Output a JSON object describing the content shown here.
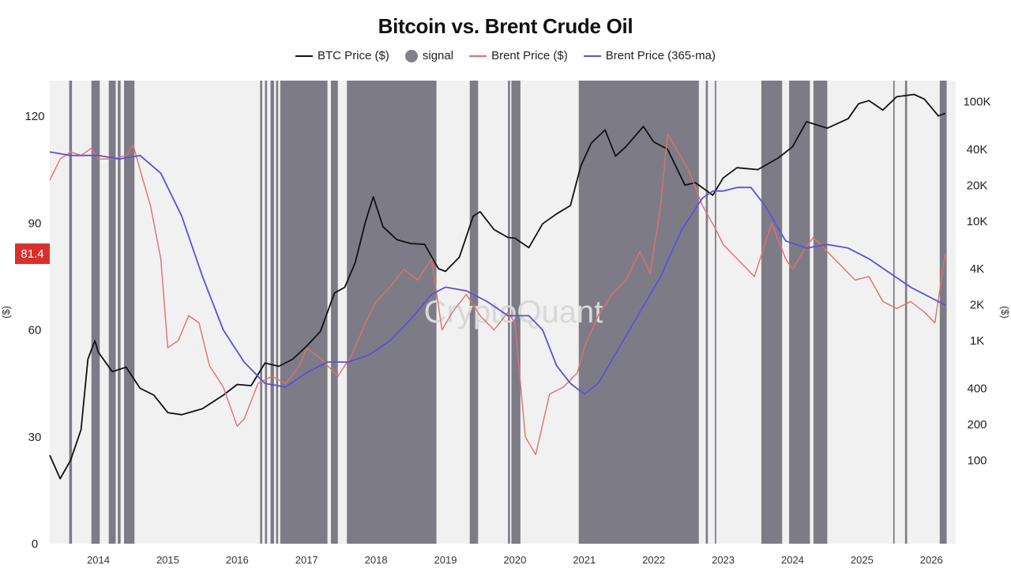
{
  "chart_data": {
    "type": "line",
    "title": "Bitcoin vs. Brent Crude Oil",
    "watermark": "CryptoQuant",
    "legend": [
      {
        "label": "BTC Price ($)",
        "color": "#111111",
        "kind": "line"
      },
      {
        "label": "signal",
        "color": "#808088",
        "kind": "dot"
      },
      {
        "label": "Brent Price ($)",
        "color": "#e07070",
        "kind": "line"
      },
      {
        "label": "Brent Price (365-ma)",
        "color": "#5a50d8",
        "kind": "line"
      }
    ],
    "left_axis": {
      "label": "($)",
      "ticks": [
        "0",
        "30",
        "60",
        "90",
        "120"
      ],
      "values": [
        0,
        30,
        60,
        90,
        120
      ],
      "range": [
        0,
        130
      ]
    },
    "right_axis": {
      "label": "($)",
      "scale": "log",
      "ticks": [
        "100K",
        "40K",
        "20K",
        "10K",
        "4K",
        "2K",
        "1K",
        "400",
        "200",
        "100"
      ],
      "values": [
        100000,
        40000,
        20000,
        10000,
        4000,
        2000,
        1000,
        400,
        200,
        100
      ],
      "range": [
        20,
        150000
      ]
    },
    "x_axis": {
      "ticks": [
        "2014",
        "2015",
        "2016",
        "2017",
        "2018",
        "2019",
        "2020",
        "2021",
        "2022",
        "2023",
        "2024",
        "2025",
        "2026"
      ],
      "values": [
        2014,
        2015,
        2016,
        2017,
        2018,
        2019,
        2020,
        2021,
        2022,
        2023,
        2024,
        2025,
        2026
      ],
      "range": [
        2013.3,
        2026.35
      ]
    },
    "current_value_label": "81.4",
    "current_value": 81.4,
    "series": [
      {
        "name": "BTC Price ($)",
        "axis": "right",
        "x": [
          2013.3,
          2013.45,
          2013.6,
          2013.75,
          2013.85,
          2013.95,
          2014.0,
          2014.2,
          2014.4,
          2014.6,
          2014.8,
          2015.0,
          2015.2,
          2015.5,
          2015.8,
          2016.0,
          2016.2,
          2016.4,
          2016.6,
          2016.8,
          2017.0,
          2017.2,
          2017.4,
          2017.55,
          2017.7,
          2017.85,
          2017.96,
          2018.1,
          2018.3,
          2018.5,
          2018.7,
          2018.9,
          2019.0,
          2019.2,
          2019.4,
          2019.5,
          2019.7,
          2019.9,
          2020.0,
          2020.2,
          2020.4,
          2020.6,
          2020.8,
          2020.95,
          2021.1,
          2021.3,
          2021.45,
          2021.6,
          2021.85,
          2022.0,
          2022.2,
          2022.45,
          2022.6,
          2022.85,
          2023.0,
          2023.2,
          2023.5,
          2023.8,
          2024.0,
          2024.2,
          2024.5,
          2024.8,
          2024.95,
          2025.1,
          2025.3,
          2025.5,
          2025.75,
          2025.9,
          2026.1,
          2026.2
        ],
        "values": [
          110,
          70,
          100,
          180,
          700,
          1000,
          800,
          550,
          600,
          400,
          350,
          250,
          240,
          270,
          350,
          430,
          420,
          650,
          610,
          700,
          900,
          1200,
          2500,
          2800,
          4500,
          10000,
          16000,
          9000,
          7000,
          6500,
          6400,
          4000,
          3800,
          5000,
          11000,
          12000,
          8500,
          7300,
          7200,
          6000,
          9500,
          11500,
          13500,
          29000,
          45000,
          58000,
          35000,
          42000,
          62000,
          46000,
          40000,
          20000,
          21000,
          16500,
          23000,
          28000,
          27000,
          34000,
          42000,
          68000,
          60000,
          72000,
          96000,
          102000,
          85000,
          110000,
          115000,
          105000,
          76000,
          80000
        ]
      },
      {
        "name": "Brent Price ($)",
        "axis": "left",
        "x": [
          2013.3,
          2013.45,
          2013.6,
          2013.75,
          2013.9,
          2014.0,
          2014.2,
          2014.4,
          2014.5,
          2014.6,
          2014.75,
          2014.9,
          2015.0,
          2015.15,
          2015.3,
          2015.45,
          2015.6,
          2015.8,
          2016.0,
          2016.1,
          2016.3,
          2016.5,
          2016.7,
          2016.9,
          2017.0,
          2017.2,
          2017.45,
          2017.65,
          2017.85,
          2018.0,
          2018.2,
          2018.4,
          2018.6,
          2018.8,
          2018.95,
          2019.1,
          2019.3,
          2019.5,
          2019.7,
          2019.9,
          2020.0,
          2020.15,
          2020.3,
          2020.5,
          2020.7,
          2020.9,
          2021.0,
          2021.2,
          2021.4,
          2021.6,
          2021.8,
          2021.95,
          2022.1,
          2022.2,
          2022.35,
          2022.5,
          2022.7,
          2022.9,
          2023.0,
          2023.2,
          2023.45,
          2023.7,
          2023.9,
          2024.0,
          2024.15,
          2024.3,
          2024.5,
          2024.7,
          2024.9,
          2025.1,
          2025.3,
          2025.5,
          2025.7,
          2025.9,
          2026.05,
          2026.2
        ],
        "values": [
          102,
          108,
          110,
          109,
          111,
          108,
          108,
          109,
          112,
          105,
          95,
          80,
          55,
          57,
          64,
          62,
          50,
          44,
          33,
          35,
          45,
          47,
          45,
          50,
          55,
          52,
          47,
          53,
          62,
          68,
          72,
          77,
          74,
          80,
          60,
          65,
          70,
          64,
          60,
          65,
          62,
          30,
          25,
          42,
          44,
          48,
          55,
          64,
          70,
          74,
          82,
          76,
          95,
          115,
          110,
          105,
          95,
          88,
          84,
          80,
          75,
          90,
          80,
          77,
          82,
          86,
          82,
          78,
          74,
          75,
          68,
          66,
          68,
          65,
          62,
          81.4
        ]
      },
      {
        "name": "Brent Price (365-ma)",
        "axis": "left",
        "x": [
          2013.3,
          2013.6,
          2014.0,
          2014.3,
          2014.6,
          2014.9,
          2015.2,
          2015.5,
          2015.8,
          2016.1,
          2016.4,
          2016.7,
          2017.0,
          2017.3,
          2017.6,
          2017.9,
          2018.2,
          2018.5,
          2018.8,
          2019.0,
          2019.3,
          2019.6,
          2019.9,
          2020.0,
          2020.2,
          2020.4,
          2020.6,
          2020.8,
          2021.0,
          2021.2,
          2021.5,
          2021.8,
          2022.1,
          2022.4,
          2022.7,
          2022.85,
          2023.0,
          2023.2,
          2023.4,
          2023.6,
          2023.9,
          2024.2,
          2024.5,
          2024.8,
          2025.1,
          2025.4,
          2025.7,
          2026.0,
          2026.2
        ],
        "values": [
          110,
          109,
          109,
          108,
          109,
          104,
          92,
          75,
          60,
          51,
          45,
          44,
          48,
          51,
          51,
          53,
          57,
          63,
          70,
          72,
          71,
          68,
          64,
          64,
          64,
          60,
          50,
          45,
          42,
          45,
          55,
          65,
          75,
          88,
          97,
          99,
          99,
          100,
          100,
          95,
          85,
          83,
          84,
          83,
          80,
          76,
          72,
          69,
          67
        ]
      }
    ],
    "signal_periods": [
      [
        2013.58,
        2013.62
      ],
      [
        2013.9,
        2014.02
      ],
      [
        2014.15,
        2014.25
      ],
      [
        2014.28,
        2014.32
      ],
      [
        2014.37,
        2014.52
      ],
      [
        2016.33,
        2016.36
      ],
      [
        2016.4,
        2016.43
      ],
      [
        2016.48,
        2016.53
      ],
      [
        2016.56,
        2016.59
      ],
      [
        2016.62,
        2017.3
      ],
      [
        2017.35,
        2017.45
      ],
      [
        2017.58,
        2018.87
      ],
      [
        2019.35,
        2019.47
      ],
      [
        2019.9,
        2019.93
      ],
      [
        2019.95,
        2020.08
      ],
      [
        2020.92,
        2022.65
      ],
      [
        2022.75,
        2022.78
      ],
      [
        2022.88,
        2022.9
      ],
      [
        2023.55,
        2023.85
      ],
      [
        2023.95,
        2024.25
      ],
      [
        2024.3,
        2024.5
      ],
      [
        2025.45,
        2025.47
      ],
      [
        2025.62,
        2025.65
      ],
      [
        2026.12,
        2026.22
      ]
    ]
  }
}
